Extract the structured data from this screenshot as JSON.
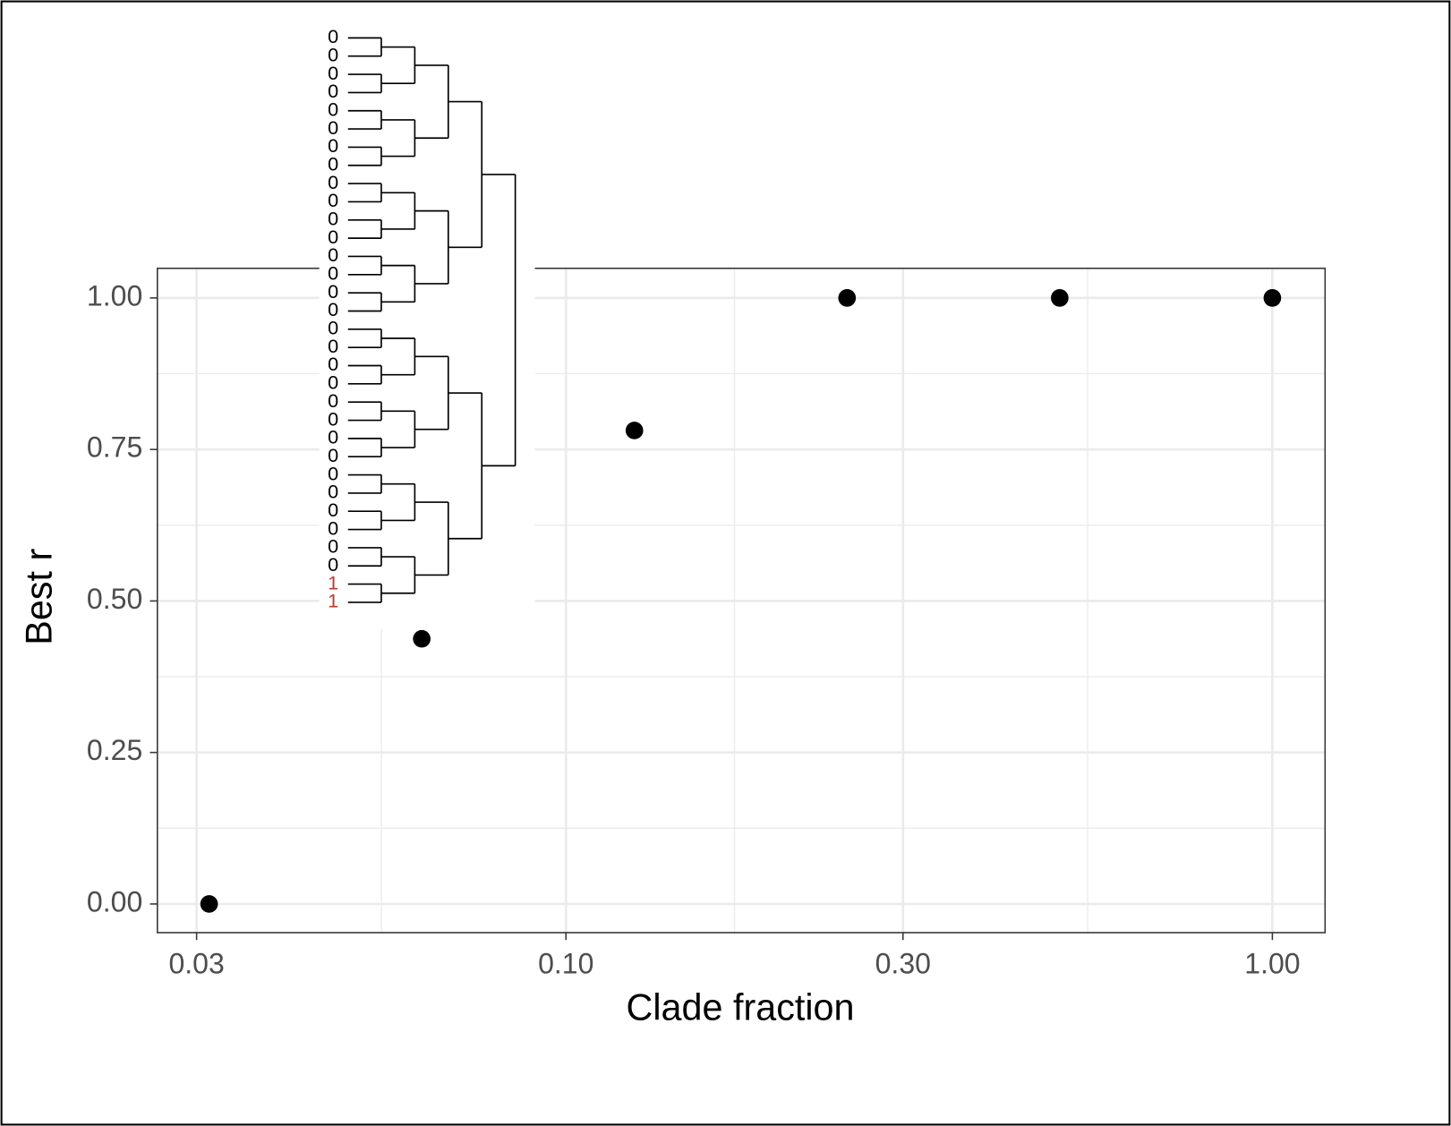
{
  "chart_data": {
    "type": "scatter",
    "x_label": "Clade fraction",
    "y_label": "Best r",
    "x": [
      0.03125,
      0.0625,
      0.125,
      0.25,
      0.5,
      1
    ],
    "values": [
      0,
      0.4375,
      0.78125,
      1,
      1,
      1
    ],
    "color": "#000000",
    "log_x": true,
    "xlim": [
      0.0264,
      1.1875
    ],
    "ylim": [
      -0.0473,
      1.0489
    ],
    "xticks": [
      {
        "value": 0.03,
        "label": "0.03"
      },
      {
        "value": 0.1,
        "label": "0.10"
      },
      {
        "value": 0.3,
        "label": "0.30"
      },
      {
        "value": 1,
        "label": "1.00"
      }
    ],
    "yticks": [
      {
        "value": 0,
        "label": "0.00"
      },
      {
        "value": 0.25,
        "label": "0.25"
      },
      {
        "value": 0.5,
        "label": "0.50"
      },
      {
        "value": 0.75,
        "label": "0.75"
      },
      {
        "value": 1,
        "label": "1.00"
      }
    ],
    "x_minor_ticks": [
      0.0548,
      0.1732,
      0.5477
    ],
    "y_minor_ticks": [
      0.125,
      0.375,
      0.625,
      0.875
    ],
    "grid": true
  },
  "inset_tree": {
    "tip_labels": [
      "0",
      "0",
      "0",
      "0",
      "0",
      "0",
      "0",
      "0",
      "0",
      "0",
      "0",
      "0",
      "0",
      "0",
      "0",
      "0",
      "0",
      "0",
      "0",
      "0",
      "0",
      "0",
      "0",
      "0",
      "0",
      "0",
      "0",
      "0",
      "0",
      "0",
      "1",
      "1"
    ],
    "tip_colors": [
      "#000000",
      "#000000",
      "#000000",
      "#000000",
      "#000000",
      "#000000",
      "#000000",
      "#000000",
      "#000000",
      "#000000",
      "#000000",
      "#000000",
      "#000000",
      "#000000",
      "#000000",
      "#000000",
      "#000000",
      "#000000",
      "#000000",
      "#000000",
      "#000000",
      "#000000",
      "#000000",
      "#000000",
      "#000000",
      "#000000",
      "#000000",
      "#000000",
      "#000000",
      "#000000",
      "#c0392b",
      "#c0392b"
    ]
  }
}
